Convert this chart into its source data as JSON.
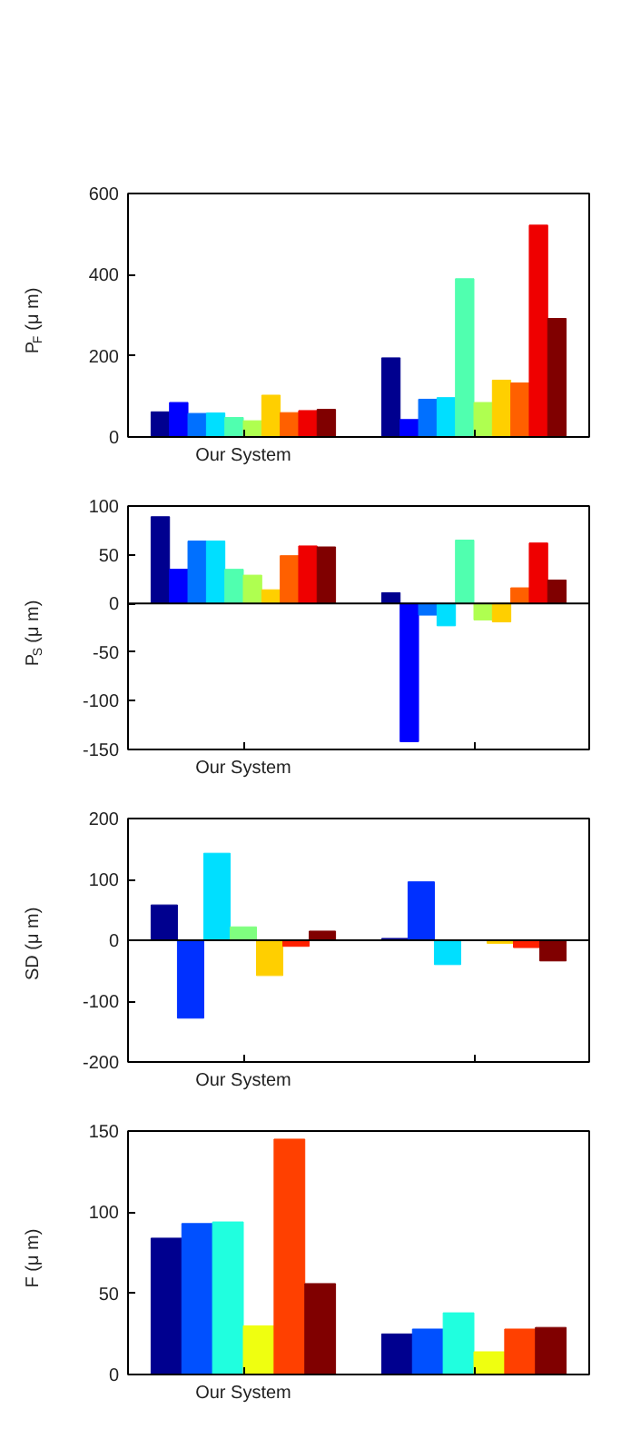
{
  "chart_data": [
    {
      "type": "bar",
      "ylabel": "P$_{F}$ (μ m)",
      "categories": [
        "Our System",
        null
      ],
      "ylim": [
        0,
        600
      ],
      "yticks": [
        0,
        200,
        400,
        600
      ],
      "grid": false,
      "series": [
        {
          "color": "#00008f",
          "values": [
            62,
            195
          ]
        },
        {
          "color": "#0000ff",
          "values": [
            85,
            43
          ]
        },
        {
          "color": "#0070ff",
          "values": [
            58,
            93
          ]
        },
        {
          "color": "#00dfff",
          "values": [
            59,
            97
          ]
        },
        {
          "color": "#50ffaf",
          "values": [
            48,
            390
          ]
        },
        {
          "color": "#afff50",
          "values": [
            40,
            85
          ]
        },
        {
          "color": "#ffcf00",
          "values": [
            103,
            140
          ]
        },
        {
          "color": "#ff6000",
          "values": [
            60,
            133
          ]
        },
        {
          "color": "#ef0000",
          "values": [
            65,
            522
          ]
        },
        {
          "color": "#800000",
          "values": [
            68,
            292
          ]
        }
      ]
    },
    {
      "type": "bar",
      "ylabel": "P$_{S}$ (μ m)",
      "categories": [
        "Our System",
        null
      ],
      "ylim": [
        -150,
        100
      ],
      "yticks": [
        -150,
        -100,
        -50,
        0,
        50,
        100
      ],
      "grid": false,
      "ref_lines": [
        {
          "axis": "y",
          "value": 0
        }
      ],
      "series": [
        {
          "color": "#00008f",
          "values": [
            89,
            11
          ]
        },
        {
          "color": "#0000ff",
          "values": [
            35,
            -142
          ]
        },
        {
          "color": "#0070ff",
          "values": [
            64,
            -12
          ]
        },
        {
          "color": "#00dfff",
          "values": [
            64,
            -23
          ]
        },
        {
          "color": "#50ffaf",
          "values": [
            35,
            65
          ]
        },
        {
          "color": "#afff50",
          "values": [
            29,
            -17
          ]
        },
        {
          "color": "#ffcf00",
          "values": [
            14,
            -19
          ]
        },
        {
          "color": "#ff6000",
          "values": [
            49,
            16
          ]
        },
        {
          "color": "#ef0000",
          "values": [
            59,
            62
          ]
        },
        {
          "color": "#800000",
          "values": [
            58,
            24
          ]
        }
      ]
    },
    {
      "type": "bar",
      "ylabel": "SD (μ m)",
      "categories": [
        "Our System",
        null
      ],
      "ylim": [
        -200,
        200
      ],
      "yticks": [
        -200,
        -100,
        0,
        100,
        200
      ],
      "grid": false,
      "ref_lines": [
        {
          "axis": "y",
          "value": 0
        }
      ],
      "series": [
        {
          "color": "#00008f",
          "values": [
            58,
            3
          ]
        },
        {
          "color": "#0030ff",
          "values": [
            -128,
            96
          ]
        },
        {
          "color": "#00dfff",
          "values": [
            143,
            -40
          ]
        },
        {
          "color": "#7fff7f",
          "values": [
            22,
            0
          ]
        },
        {
          "color": "#ffcf00",
          "values": [
            -58,
            -5
          ]
        },
        {
          "color": "#ff2000",
          "values": [
            -10,
            -12
          ]
        },
        {
          "color": "#800000",
          "values": [
            15,
            -34
          ]
        }
      ]
    },
    {
      "type": "bar",
      "ylabel": "F (μ m)",
      "categories": [
        "Our System",
        null
      ],
      "ylim": [
        0,
        150
      ],
      "yticks": [
        0,
        50,
        100,
        150
      ],
      "grid": false,
      "series": [
        {
          "color": "#00008f",
          "values": [
            84,
            25
          ]
        },
        {
          "color": "#0050ff",
          "values": [
            93,
            28
          ]
        },
        {
          "color": "#20ffdf",
          "values": [
            94,
            38
          ]
        },
        {
          "color": "#efff10",
          "values": [
            30,
            14
          ]
        },
        {
          "color": "#ff4000",
          "values": [
            145,
            28
          ]
        },
        {
          "color": "#800000",
          "values": [
            56,
            29
          ]
        }
      ]
    }
  ]
}
